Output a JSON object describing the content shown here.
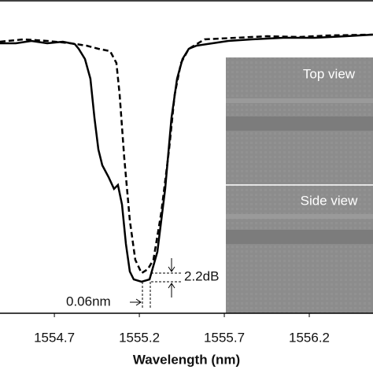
{
  "chart_data": {
    "type": "line",
    "x_label": "Wavelength (nm)",
    "xlim": [
      1554.38,
      1556.575
    ],
    "ylim": [
      -69.2,
      10.4
    ],
    "xticks": [
      1554.7,
      1555.2,
      1555.7,
      1556.2
    ],
    "series": [
      {
        "style": "solid",
        "color": "#000000",
        "x": [
          1554.38,
          1554.473,
          1554.565,
          1554.658,
          1554.75,
          1554.82,
          1554.843,
          1554.88,
          1554.912,
          1554.936,
          1554.959,
          1554.982,
          1555.019,
          1555.051,
          1555.074,
          1555.098,
          1555.121,
          1555.144,
          1555.167,
          1555.213,
          1555.26,
          1555.306,
          1555.352,
          1555.389,
          1555.422,
          1555.454,
          1555.491,
          1555.537,
          1555.63,
          1555.723,
          1555.861,
          1556.047,
          1556.232,
          1556.417,
          1556.574
        ],
        "values": [
          -0.6,
          -0.6,
          0,
          -0.6,
          -0.2,
          -0.8,
          -2,
          -4.6,
          -9.6,
          -19.6,
          -27.6,
          -31.6,
          -34.6,
          -37.6,
          -36.6,
          -41.6,
          -51.6,
          -58.6,
          -60.6,
          -61.2,
          -60.6,
          -53.6,
          -37.6,
          -19.6,
          -9.6,
          -4.6,
          -2,
          -1.2,
          -0.6,
          0,
          0.4,
          0.8,
          0.8,
          1.2,
          1.6
        ]
      },
      {
        "style": "dashed",
        "color": "#000000",
        "x": [
          1554.38,
          1554.519,
          1554.658,
          1554.797,
          1554.889,
          1554.959,
          1555.028,
          1555.065,
          1555.084,
          1555.111,
          1555.144,
          1555.176,
          1555.213,
          1555.25,
          1555.283,
          1555.329,
          1555.375,
          1555.408,
          1555.445,
          1555.491,
          1555.584,
          1555.769,
          1555.954,
          1556.139,
          1556.324,
          1556.574
        ],
        "values": [
          -0.2,
          0.4,
          0,
          -0.6,
          -1.2,
          -2,
          -2.6,
          -5.6,
          -13.6,
          -29.6,
          -45.6,
          -55.6,
          -59,
          -58,
          -55.6,
          -43.6,
          -27.6,
          -13.6,
          -5.6,
          -2,
          0.4,
          0.8,
          1.2,
          1.0,
          1.4,
          1.6
        ]
      }
    ],
    "annotations": [
      "0.06nm",
      "2.2dB"
    ],
    "inset_labels": [
      "Top view",
      "Side view"
    ]
  }
}
